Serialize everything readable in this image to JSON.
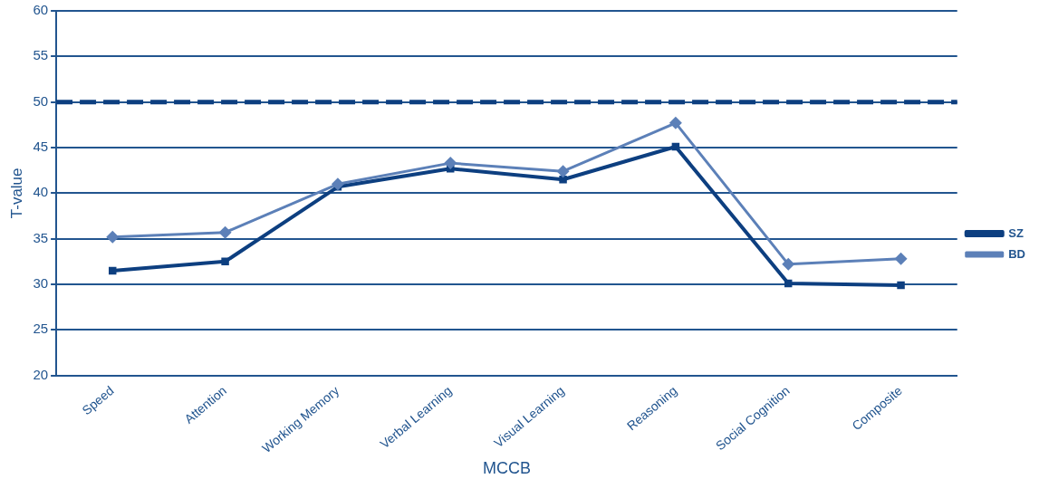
{
  "chart_data": {
    "type": "line",
    "xlabel": "MCCB",
    "ylabel": "T-value",
    "categories": [
      "Speed",
      "Attention",
      "Working Memory",
      "Verbal Learning",
      "Visual Learning",
      "Reasoning",
      "Social Cognition",
      "Composite"
    ],
    "series": [
      {
        "name": "SZ",
        "color": "#0d3f80",
        "marker": "square",
        "values": [
          31.5,
          32.5,
          40.7,
          42.7,
          41.5,
          45.1,
          30.1,
          29.9
        ]
      },
      {
        "name": "BD",
        "color": "#5c80b8",
        "marker": "diamond",
        "values": [
          35.2,
          35.7,
          41.0,
          43.3,
          42.4,
          47.7,
          32.2,
          32.8
        ]
      }
    ],
    "ylim": [
      20,
      60
    ],
    "yticks": [
      20,
      25,
      30,
      35,
      40,
      45,
      50,
      55,
      60
    ],
    "grid": "y",
    "legend": "right",
    "ref_lines": [
      {
        "axis": "y",
        "value": 50,
        "color": "#0d3f80",
        "line_style": "dashed"
      }
    ]
  }
}
